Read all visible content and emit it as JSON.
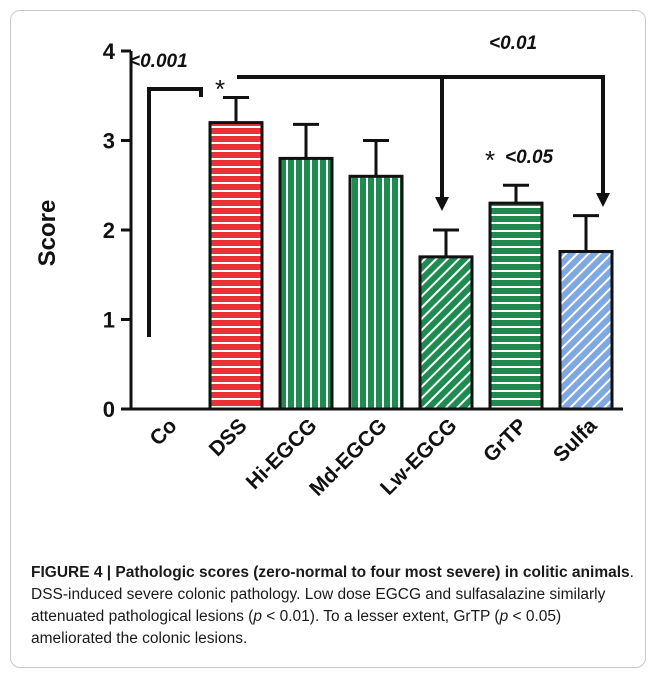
{
  "chart_data": {
    "type": "bar",
    "categories": [
      "Co",
      "DSS",
      "Hi-EGCG",
      "Md-EGCG",
      "Lw-EGCG",
      "GrTP",
      "Sulfa"
    ],
    "values": [
      0,
      3.2,
      2.8,
      2.6,
      1.7,
      2.3,
      1.76
    ],
    "errors": [
      0,
      0.28,
      0.38,
      0.4,
      0.3,
      0.2,
      0.4
    ],
    "ylabel": "Score",
    "ylim": [
      0,
      4
    ],
    "yticks": [
      "0",
      "1",
      "2",
      "3",
      "4"
    ],
    "bar_colors": [
      "#ffffff",
      "#e8323a",
      "#1e8c50",
      "#1e8c50",
      "#1e8c50",
      "#1e8c50",
      "#7fa8e0"
    ],
    "hatch_colors": [
      "#ffffff",
      "#ffffff",
      "#ffffff",
      "#ffffff",
      "#ffffff",
      "#ffffff",
      "#ffffff"
    ],
    "hatch": [
      "none",
      "horizontal",
      "vertical",
      "vertical",
      "diagonal",
      "horizontal",
      "diagonal"
    ],
    "annotations": {
      "p1": "<0.001",
      "star1": "*",
      "p2": "<0.01",
      "star2": "*",
      "p3": "<0.05"
    },
    "grid": false
  },
  "caption": {
    "label": "FIGURE 4 | Pathologic scores (zero-normal to four most severe) in colitic animals",
    "t1": ". DSS-induced severe colonic pathology. Low dose EGCG and sulfasalazine similarly attenuated pathological lesions (",
    "p_a": "p",
    "t2": " < 0.01). To a lesser extent, GrTP (",
    "p_b": "p",
    "t3": " < 0.05) ameliorated the colonic lesions."
  }
}
